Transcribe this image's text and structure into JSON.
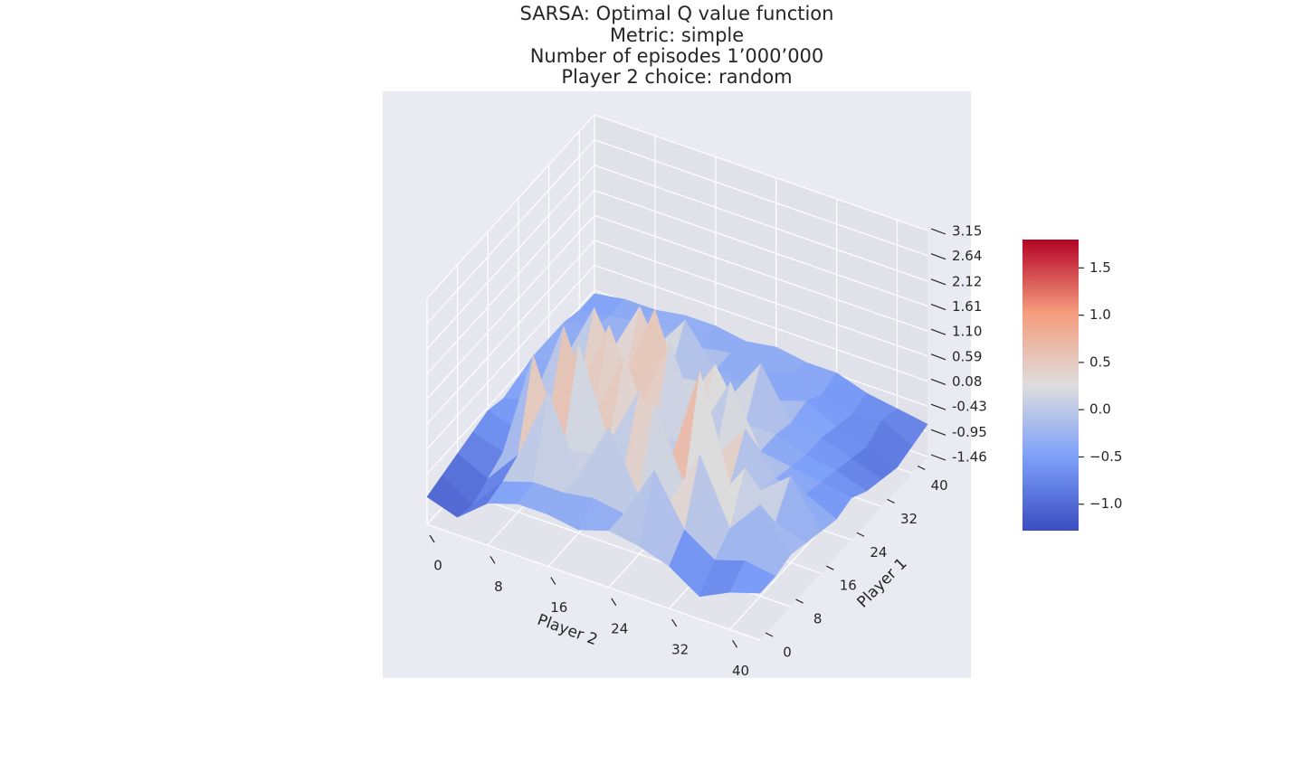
{
  "chart_data": {
    "type": "surface",
    "title": [
      "SARSA: Optimal Q value function",
      "Metric: simple",
      "Number of episodes 1’000’000",
      "Player 2 choice: random"
    ],
    "xlabel": "Player 2",
    "ylabel": "Player 1",
    "x": [
      0,
      4,
      8,
      12,
      16,
      20,
      24,
      28,
      32,
      36,
      40,
      44
    ],
    "y": [
      0,
      4,
      8,
      12,
      16,
      20,
      24,
      28,
      32,
      36,
      40,
      44
    ],
    "z": [
      [
        -0.9,
        -1.1,
        -0.6,
        -0.4,
        -0.4,
        -0.5,
        -0.3,
        -0.4,
        -0.6,
        -1.0,
        -0.7,
        -0.5
      ],
      [
        -0.8,
        -1.2,
        -0.5,
        -0.3,
        -0.3,
        -0.2,
        -0.3,
        0.8,
        -0.2,
        -0.6,
        -0.4,
        -0.5
      ],
      [
        -0.7,
        -1.0,
        -0.3,
        1.2,
        -0.3,
        0.9,
        -0.3,
        -0.2,
        1.0,
        -0.3,
        0.4,
        -0.4
      ],
      [
        -0.6,
        -0.8,
        1.4,
        -0.3,
        -0.2,
        -0.3,
        1.3,
        -0.2,
        -0.3,
        0.6,
        -0.3,
        -0.5
      ],
      [
        -0.5,
        -0.7,
        -0.3,
        1.5,
        -0.3,
        1.0,
        -0.3,
        1.8,
        -0.3,
        -0.2,
        0.3,
        -0.6
      ],
      [
        -0.6,
        -0.4,
        1.3,
        -0.3,
        1.1,
        -0.3,
        -0.2,
        -0.3,
        0.5,
        -0.3,
        -0.4,
        -0.7
      ],
      [
        -0.5,
        -0.3,
        -0.3,
        1.2,
        -0.3,
        1.3,
        -0.3,
        0.9,
        -0.3,
        -0.4,
        -0.5,
        -0.6
      ],
      [
        -0.4,
        -0.3,
        1.0,
        -0.2,
        1.4,
        -0.3,
        0.7,
        -0.3,
        -0.3,
        -0.5,
        -0.6,
        -0.8
      ],
      [
        -0.4,
        -0.3,
        -0.3,
        0.9,
        -0.3,
        -0.2,
        -0.3,
        0.6,
        -0.4,
        -0.5,
        -0.7,
        -0.9
      ],
      [
        -0.4,
        -0.3,
        -0.2,
        -0.3,
        0.5,
        -0.3,
        -0.4,
        -0.5,
        -0.3,
        -0.6,
        -0.8,
        -1.0
      ],
      [
        -0.5,
        -0.4,
        -0.3,
        -0.3,
        -0.4,
        -0.3,
        -0.4,
        -0.3,
        -0.5,
        -0.7,
        -0.6,
        -0.9
      ],
      [
        -0.5,
        -0.4,
        -0.4,
        -0.3,
        -0.3,
        -0.4,
        -0.3,
        -0.4,
        -0.4,
        -0.6,
        -0.7,
        -0.8
      ]
    ],
    "xlim": [
      0,
      44
    ],
    "ylim": [
      0,
      44
    ],
    "zlim": [
      -1.46,
      3.15
    ],
    "xticks": [
      0,
      8,
      16,
      24,
      32,
      40
    ],
    "yticks": [
      0,
      8,
      16,
      24,
      32,
      40
    ],
    "zticks": [
      3.15,
      2.64,
      2.12,
      1.61,
      {
        "value": 1.1,
        "label": "1.10"
      },
      0.59,
      0.08,
      -0.43,
      -0.95,
      -1.46
    ],
    "colormap": "coolwarm",
    "clim": [
      -1.28,
      1.8
    ],
    "cticks": [
      1.5,
      {
        "value": 1.0,
        "label": "1.0"
      },
      0.5,
      {
        "value": 0,
        "label": "0.0"
      },
      {
        "value": -0.5,
        "label": "−0.5"
      },
      {
        "value": -1.0,
        "label": "−1.0"
      }
    ],
    "grid": true
  }
}
